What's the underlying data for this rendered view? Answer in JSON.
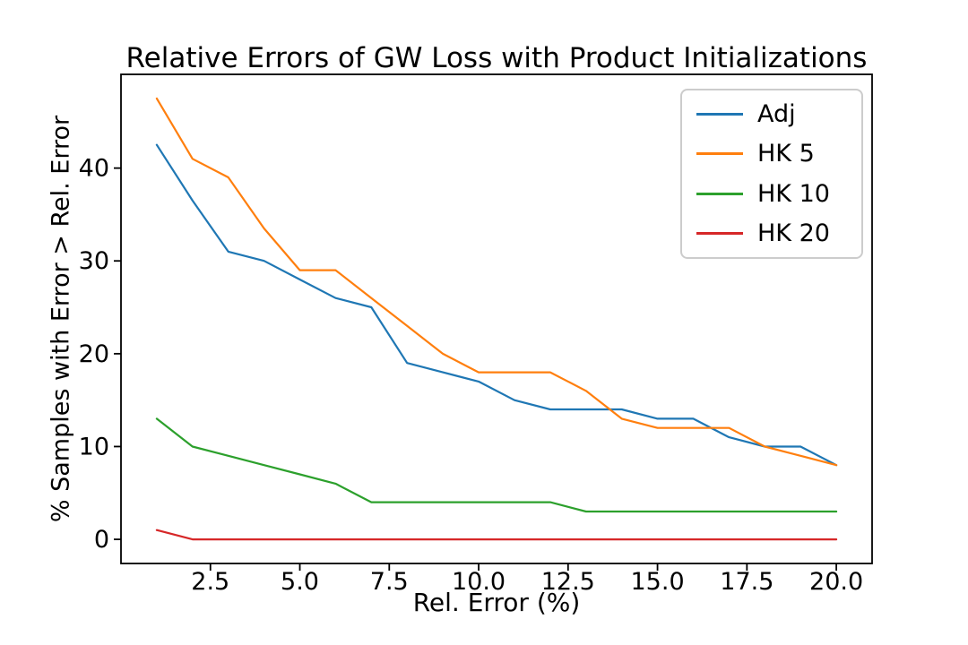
{
  "figure": {
    "background": "#ffffff",
    "text_color": "#000000",
    "spine_color": "#000000",
    "legend_border_color": "#cccccc"
  },
  "chart_data": {
    "type": "line",
    "title": "Relative Errors of GW Loss with Product Initializations",
    "xlabel": "Rel. Error (%)",
    "ylabel": "% Samples with Error > Rel. Error",
    "x": [
      1,
      2,
      3,
      4,
      5,
      6,
      7,
      8,
      9,
      10,
      11,
      12,
      13,
      14,
      15,
      16,
      17,
      18,
      19,
      20
    ],
    "series": [
      {
        "name": "Adj",
        "color": "#1f77b4",
        "values": [
          42.5,
          36.5,
          31,
          30,
          28,
          26,
          25,
          19,
          18,
          17,
          15,
          14,
          14,
          14,
          13,
          13,
          11,
          10,
          10,
          8
        ]
      },
      {
        "name": "HK 5",
        "color": "#ff7f0e",
        "values": [
          47.5,
          41,
          39,
          33.5,
          29,
          29,
          26,
          23,
          20,
          18,
          18,
          18,
          16,
          13,
          12,
          12,
          12,
          10,
          9,
          8
        ]
      },
      {
        "name": "HK 10",
        "color": "#2ca02c",
        "values": [
          13,
          10,
          9,
          8,
          7,
          6,
          4,
          4,
          4,
          4,
          4,
          4,
          3,
          3,
          3,
          3,
          3,
          3,
          3,
          3
        ]
      },
      {
        "name": "HK 20",
        "color": "#d62728",
        "values": [
          1,
          0,
          0,
          0,
          0,
          0,
          0,
          0,
          0,
          0,
          0,
          0,
          0,
          0,
          0,
          0,
          0,
          0,
          0,
          0
        ]
      }
    ],
    "xticks": [
      2.5,
      5.0,
      7.5,
      10.0,
      12.5,
      15.0,
      17.5,
      20.0
    ],
    "xtick_labels": [
      "2.5",
      "5.0",
      "7.5",
      "10.0",
      "12.5",
      "15.0",
      "17.5",
      "20.0"
    ],
    "yticks": [
      0,
      10,
      20,
      30,
      40
    ],
    "ytick_labels": [
      "0",
      "10",
      "20",
      "30",
      "40"
    ],
    "xlim": [
      0,
      21
    ],
    "ylim": [
      -2.6,
      50.1
    ],
    "grid": false,
    "legend_position": "upper right"
  }
}
